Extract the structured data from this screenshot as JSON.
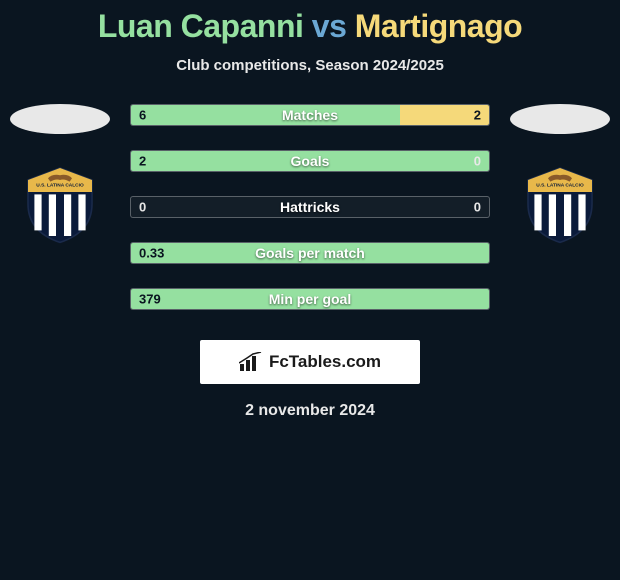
{
  "title": {
    "player1": "Luan Capanni",
    "vs": "vs",
    "player2": "Martignago"
  },
  "subtitle": "Club competitions, Season 2024/2025",
  "colors": {
    "player1": "#95e0a0",
    "player2": "#f5d97a",
    "background": "#0a1520",
    "text": "#e8e8e8",
    "bar_border": "rgba(255,255,255,0.3)"
  },
  "stats": [
    {
      "label": "Matches",
      "left_val": "6",
      "right_val": "2",
      "left_pct": 75,
      "right_pct": 25,
      "left_on_bar": true,
      "right_on_bar": true
    },
    {
      "label": "Goals",
      "left_val": "2",
      "right_val": "0",
      "left_pct": 100,
      "right_pct": 0,
      "left_on_bar": true,
      "right_on_bar": false
    },
    {
      "label": "Hattricks",
      "left_val": "0",
      "right_val": "0",
      "left_pct": 0,
      "right_pct": 0,
      "left_on_bar": false,
      "right_on_bar": false
    },
    {
      "label": "Goals per match",
      "left_val": "0.33",
      "right_val": "",
      "left_pct": 100,
      "right_pct": 0,
      "left_on_bar": true,
      "right_on_bar": false
    },
    {
      "label": "Min per goal",
      "left_val": "379",
      "right_val": "",
      "left_pct": 100,
      "right_pct": 0,
      "left_on_bar": true,
      "right_on_bar": false
    }
  ],
  "crest": {
    "text": "U.S. LATINA CALCIO",
    "stripe_colors": [
      "#0a1a3a",
      "#ffffff"
    ],
    "top_color": "#e8b84a",
    "border_color": "#0a1a3a"
  },
  "footer_brand": "FcTables.com",
  "date": "2 november 2024"
}
